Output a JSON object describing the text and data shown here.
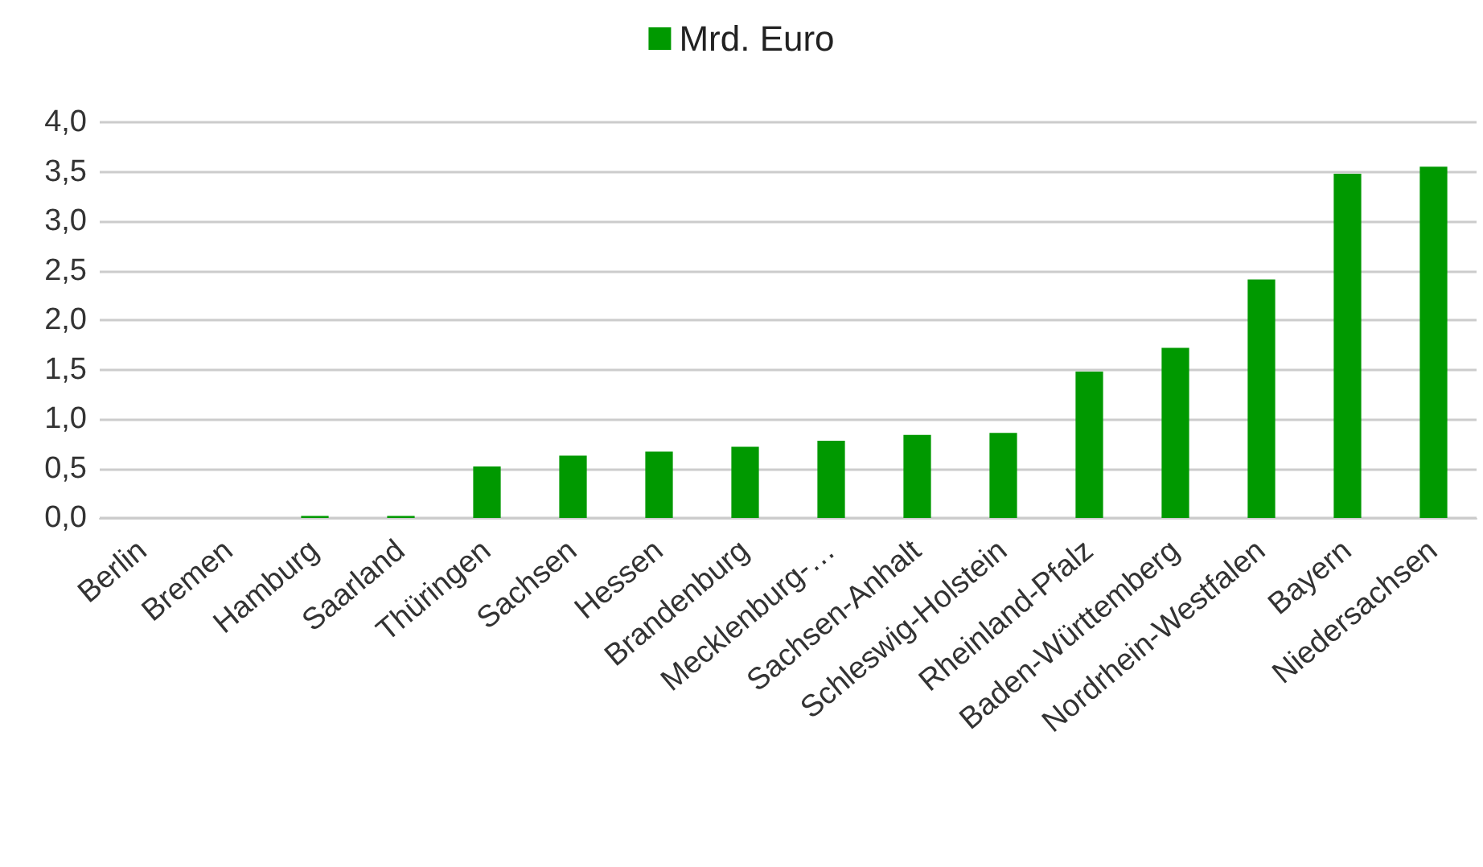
{
  "chart_data": {
    "type": "bar",
    "categories": [
      "Berlin",
      "Bremen",
      "Hamburg",
      "Saarland",
      "Thüringen",
      "Sachsen",
      "Hessen",
      "Brandenburg",
      "Mecklenburg-…",
      "Sachsen-Anhalt",
      "Schleswig-Holstein",
      "Rheinland-Pfalz",
      "Baden-Württemberg",
      "Nordrhein-Westfalen",
      "Bayern",
      "Niedersachsen"
    ],
    "series": [
      {
        "name": "Mrd. Euro",
        "color": "#009900",
        "values": [
          0,
          0,
          0.02,
          0.02,
          0.52,
          0.63,
          0.67,
          0.72,
          0.78,
          0.84,
          0.86,
          1.48,
          1.72,
          2.41,
          3.48,
          3.55
        ]
      }
    ],
    "ylim": [
      0,
      4
    ],
    "yticks": [
      {
        "value": 0,
        "label": "0,0"
      },
      {
        "value": 0.5,
        "label": "0,5"
      },
      {
        "value": 1,
        "label": "1,0"
      },
      {
        "value": 1.5,
        "label": "1,5"
      },
      {
        "value": 2,
        "label": "2,0"
      },
      {
        "value": 2.5,
        "label": "2,5"
      },
      {
        "value": 3,
        "label": "3,0"
      },
      {
        "value": 3.5,
        "label": "3,5"
      },
      {
        "value": 4,
        "label": "4,0"
      }
    ],
    "grid": "y",
    "legend": "top"
  }
}
